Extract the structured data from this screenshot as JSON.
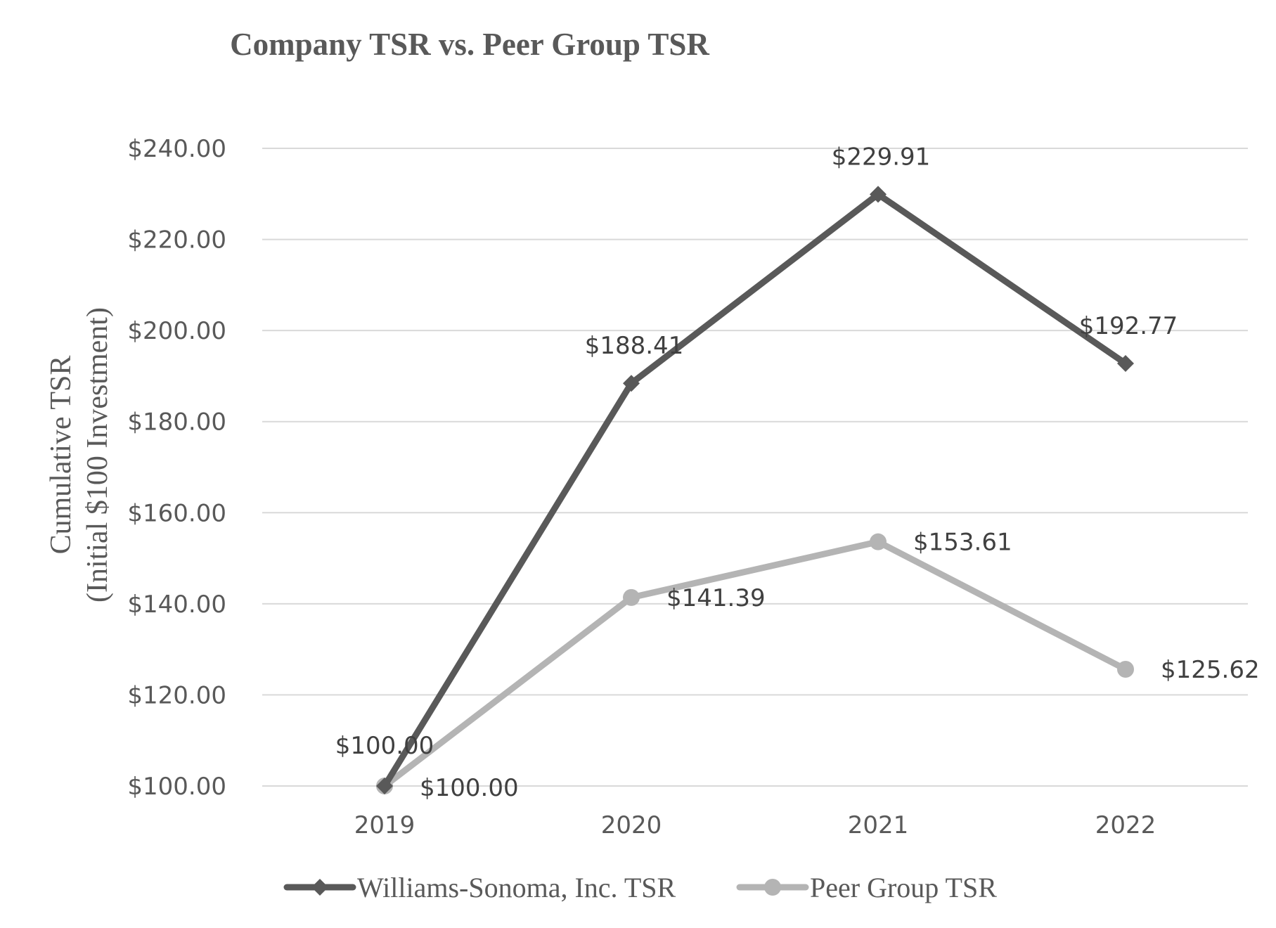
{
  "chart_data": {
    "type": "line",
    "title": "Company TSR vs. Peer Group TSR",
    "ylabel_line1": "Cumulative TSR",
    "ylabel_line2": "(Initial $100 Investment)",
    "xlabel": "",
    "categories": [
      "2019",
      "2020",
      "2021",
      "2022"
    ],
    "ylim": [
      100,
      240
    ],
    "yticks": [
      {
        "value": 100,
        "label": "$100.00"
      },
      {
        "value": 120,
        "label": "$120.00"
      },
      {
        "value": 140,
        "label": "$140.00"
      },
      {
        "value": 160,
        "label": "$160.00"
      },
      {
        "value": 180,
        "label": "$180.00"
      },
      {
        "value": 200,
        "label": "$200.00"
      },
      {
        "value": 220,
        "label": "$220.00"
      },
      {
        "value": 240,
        "label": "$240.00"
      }
    ],
    "grid": true,
    "legend_position": "bottom",
    "series": [
      {
        "name": "Williams-Sonoma, Inc. TSR",
        "values": [
          100.0,
          188.41,
          229.91,
          192.77
        ],
        "labels": [
          "$100.00",
          "$188.41",
          "$229.91",
          "$192.77"
        ],
        "color": "#595959",
        "marker": "diamond"
      },
      {
        "name": "Peer Group TSR",
        "values": [
          100.0,
          141.39,
          153.61,
          125.62
        ],
        "labels": [
          "$100.00",
          "$141.39",
          "$153.61",
          "$125.62"
        ],
        "color": "#b4b4b4",
        "marker": "circle"
      }
    ]
  }
}
